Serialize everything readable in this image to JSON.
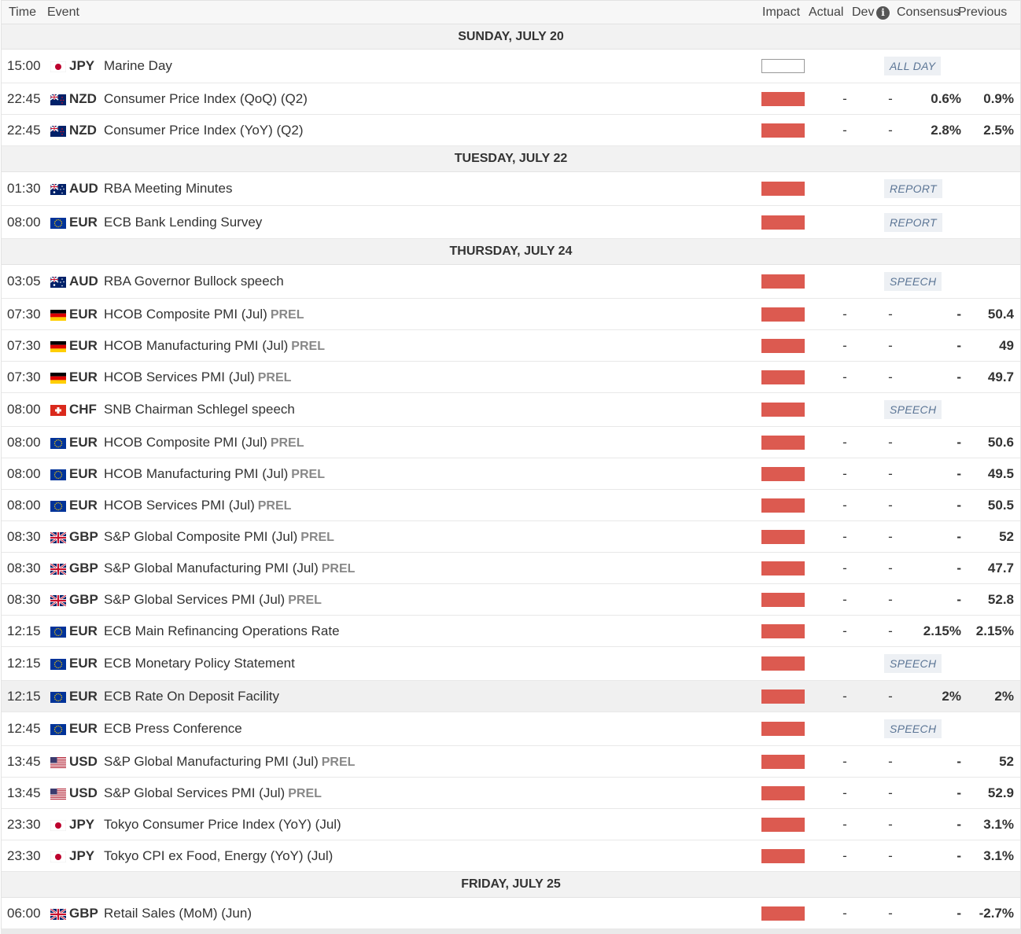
{
  "header": {
    "time": "Time",
    "event": "Event",
    "impact": "Impact",
    "actual": "Actual",
    "dev": "Dev",
    "consensus": "Consensus",
    "previous": "Previous",
    "info_icon": "info-icon"
  },
  "colors": {
    "high_impact": "#dc5a50",
    "badge_text": "#5b7595",
    "day_bg": "#f2f2f2"
  },
  "days": [
    {
      "label": "SUNDAY, JULY 20"
    },
    {
      "label": "TUESDAY, JULY 22"
    },
    {
      "label": "THURSDAY, JULY 24"
    },
    {
      "label": "FRIDAY, JULY 25"
    }
  ],
  "rows": [
    {
      "time": "15:00",
      "flag": "jp",
      "currency": "JPY",
      "event": "Marine Day",
      "tag": "",
      "impact": "none",
      "actual": "",
      "dev": "",
      "consensus": "",
      "previous": "",
      "badge": "ALL DAY"
    },
    {
      "time": "22:45",
      "flag": "nz",
      "currency": "NZD",
      "event": "Consumer Price Index (QoQ) (Q2)",
      "tag": "",
      "impact": "high",
      "actual": "-",
      "dev": "-",
      "consensus": "0.6%",
      "previous": "0.9%",
      "badge": ""
    },
    {
      "time": "22:45",
      "flag": "nz",
      "currency": "NZD",
      "event": "Consumer Price Index (YoY) (Q2)",
      "tag": "",
      "impact": "high",
      "actual": "-",
      "dev": "-",
      "consensus": "2.8%",
      "previous": "2.5%",
      "badge": ""
    },
    {
      "time": "01:30",
      "flag": "au",
      "currency": "AUD",
      "event": "RBA Meeting Minutes",
      "tag": "",
      "impact": "high",
      "actual": "",
      "dev": "",
      "consensus": "",
      "previous": "",
      "badge": "REPORT"
    },
    {
      "time": "08:00",
      "flag": "eu",
      "currency": "EUR",
      "event": "ECB Bank Lending Survey",
      "tag": "",
      "impact": "high",
      "actual": "",
      "dev": "",
      "consensus": "",
      "previous": "",
      "badge": "REPORT"
    },
    {
      "time": "03:05",
      "flag": "au",
      "currency": "AUD",
      "event": "RBA Governor Bullock speech",
      "tag": "",
      "impact": "high",
      "actual": "",
      "dev": "",
      "consensus": "",
      "previous": "",
      "badge": "SPEECH"
    },
    {
      "time": "07:30",
      "flag": "de",
      "currency": "EUR",
      "event": "HCOB Composite PMI (Jul)",
      "tag": "PREL",
      "impact": "high",
      "actual": "-",
      "dev": "-",
      "consensus": "-",
      "previous": "50.4",
      "badge": ""
    },
    {
      "time": "07:30",
      "flag": "de",
      "currency": "EUR",
      "event": "HCOB Manufacturing PMI (Jul)",
      "tag": "PREL",
      "impact": "high",
      "actual": "-",
      "dev": "-",
      "consensus": "-",
      "previous": "49",
      "badge": ""
    },
    {
      "time": "07:30",
      "flag": "de",
      "currency": "EUR",
      "event": "HCOB Services PMI (Jul)",
      "tag": "PREL",
      "impact": "high",
      "actual": "-",
      "dev": "-",
      "consensus": "-",
      "previous": "49.7",
      "badge": ""
    },
    {
      "time": "08:00",
      "flag": "ch",
      "currency": "CHF",
      "event": "SNB Chairman Schlegel speech",
      "tag": "",
      "impact": "high",
      "actual": "",
      "dev": "",
      "consensus": "",
      "previous": "",
      "badge": "SPEECH"
    },
    {
      "time": "08:00",
      "flag": "eu",
      "currency": "EUR",
      "event": "HCOB Composite PMI (Jul)",
      "tag": "PREL",
      "impact": "high",
      "actual": "-",
      "dev": "-",
      "consensus": "-",
      "previous": "50.6",
      "badge": ""
    },
    {
      "time": "08:00",
      "flag": "eu",
      "currency": "EUR",
      "event": "HCOB Manufacturing PMI (Jul)",
      "tag": "PREL",
      "impact": "high",
      "actual": "-",
      "dev": "-",
      "consensus": "-",
      "previous": "49.5",
      "badge": ""
    },
    {
      "time": "08:00",
      "flag": "eu",
      "currency": "EUR",
      "event": "HCOB Services PMI (Jul)",
      "tag": "PREL",
      "impact": "high",
      "actual": "-",
      "dev": "-",
      "consensus": "-",
      "previous": "50.5",
      "badge": ""
    },
    {
      "time": "08:30",
      "flag": "gb",
      "currency": "GBP",
      "event": "S&P Global Composite PMI (Jul)",
      "tag": "PREL",
      "impact": "high",
      "actual": "-",
      "dev": "-",
      "consensus": "-",
      "previous": "52",
      "badge": ""
    },
    {
      "time": "08:30",
      "flag": "gb",
      "currency": "GBP",
      "event": "S&P Global Manufacturing PMI (Jul)",
      "tag": "PREL",
      "impact": "high",
      "actual": "-",
      "dev": "-",
      "consensus": "-",
      "previous": "47.7",
      "badge": ""
    },
    {
      "time": "08:30",
      "flag": "gb",
      "currency": "GBP",
      "event": "S&P Global Services PMI (Jul)",
      "tag": "PREL",
      "impact": "high",
      "actual": "-",
      "dev": "-",
      "consensus": "-",
      "previous": "52.8",
      "badge": ""
    },
    {
      "time": "12:15",
      "flag": "eu",
      "currency": "EUR",
      "event": "ECB Main Refinancing Operations Rate",
      "tag": "",
      "impact": "high",
      "actual": "-",
      "dev": "-",
      "consensus": "2.15%",
      "previous": "2.15%",
      "badge": ""
    },
    {
      "time": "12:15",
      "flag": "eu",
      "currency": "EUR",
      "event": "ECB Monetary Policy Statement",
      "tag": "",
      "impact": "high",
      "actual": "",
      "dev": "",
      "consensus": "",
      "previous": "",
      "badge": "SPEECH"
    },
    {
      "time": "12:15",
      "flag": "eu",
      "currency": "EUR",
      "event": "ECB Rate On Deposit Facility",
      "tag": "",
      "impact": "high",
      "actual": "-",
      "dev": "-",
      "consensus": "2%",
      "previous": "2%",
      "badge": ""
    },
    {
      "time": "12:45",
      "flag": "eu",
      "currency": "EUR",
      "event": "ECB Press Conference",
      "tag": "",
      "impact": "high",
      "actual": "",
      "dev": "",
      "consensus": "",
      "previous": "",
      "badge": "SPEECH"
    },
    {
      "time": "13:45",
      "flag": "us",
      "currency": "USD",
      "event": "S&P Global Manufacturing PMI (Jul)",
      "tag": "PREL",
      "impact": "high",
      "actual": "-",
      "dev": "-",
      "consensus": "-",
      "previous": "52",
      "badge": ""
    },
    {
      "time": "13:45",
      "flag": "us",
      "currency": "USD",
      "event": "S&P Global Services PMI (Jul)",
      "tag": "PREL",
      "impact": "high",
      "actual": "-",
      "dev": "-",
      "consensus": "-",
      "previous": "52.9",
      "badge": ""
    },
    {
      "time": "23:30",
      "flag": "jp",
      "currency": "JPY",
      "event": "Tokyo Consumer Price Index (YoY) (Jul)",
      "tag": "",
      "impact": "high",
      "actual": "-",
      "dev": "-",
      "consensus": "-",
      "previous": "3.1%",
      "badge": ""
    },
    {
      "time": "23:30",
      "flag": "jp",
      "currency": "JPY",
      "event": "Tokyo CPI ex Food, Energy (YoY) (Jul)",
      "tag": "",
      "impact": "high",
      "actual": "-",
      "dev": "-",
      "consensus": "-",
      "previous": "3.1%",
      "badge": ""
    },
    {
      "time": "06:00",
      "flag": "gb",
      "currency": "GBP",
      "event": "Retail Sales (MoM) (Jun)",
      "tag": "",
      "impact": "high",
      "actual": "-",
      "dev": "-",
      "consensus": "-",
      "previous": "-2.7%",
      "badge": ""
    }
  ]
}
